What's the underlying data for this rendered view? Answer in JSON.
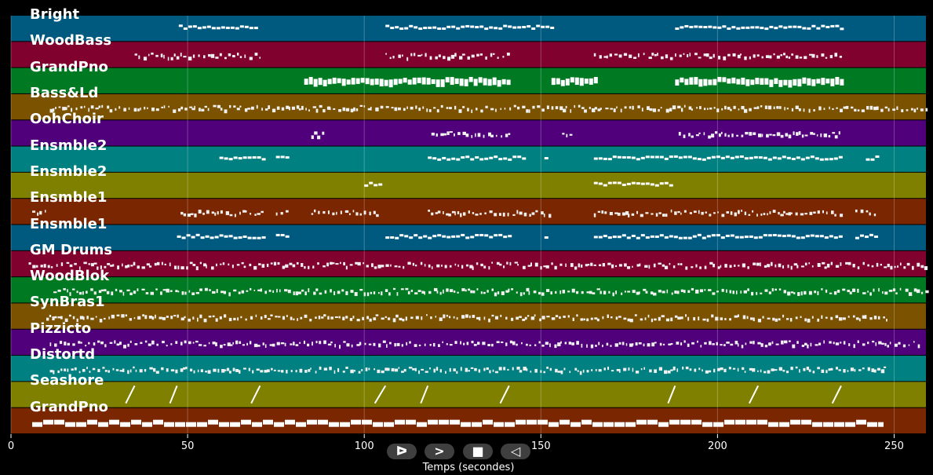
{
  "chart_data": {
    "type": "timeline",
    "xlabel": "Temps (secondes)",
    "xlim": [
      0,
      259
    ],
    "xticks": [
      0,
      50,
      100,
      150,
      200,
      250
    ],
    "grid": true,
    "tracks": [
      {
        "name": "Bright",
        "color": "#005a80",
        "style": "line",
        "segments": [
          [
            47.5,
            70
          ],
          [
            106,
            153
          ],
          [
            188,
            235
          ]
        ]
      },
      {
        "name": "WoodBass",
        "color": "#80002e",
        "style": "dots",
        "segments": [
          [
            35,
            71
          ],
          [
            106,
            141
          ],
          [
            165,
            235
          ]
        ]
      },
      {
        "name": "GrandPno",
        "color": "#007a22",
        "style": "chord",
        "segments": [
          [
            83,
            141
          ],
          [
            153,
            165
          ],
          [
            188,
            235
          ]
        ]
      },
      {
        "name": "Bass&Ld",
        "color": "#7a5200",
        "style": "dots",
        "segments": [
          [
            11,
            259
          ]
        ]
      },
      {
        "name": "OohChoir",
        "color": "#50007a",
        "style": "dots",
        "segments": [
          [
            85,
            89
          ],
          [
            119,
            142
          ],
          [
            156,
            159
          ],
          [
            189,
            235
          ]
        ]
      },
      {
        "name": "Ensmble2",
        "color": "#008080",
        "style": "line",
        "segments": [
          [
            59,
            71
          ],
          [
            118,
            141
          ],
          [
            165,
            235
          ],
          [
            75,
            78
          ],
          [
            142,
            145
          ],
          [
            151,
            152
          ],
          [
            242,
            245
          ]
        ]
      },
      {
        "name": "Ensmble2",
        "color": "#808000",
        "style": "line",
        "segments": [
          [
            100,
            104
          ],
          [
            165,
            187
          ]
        ]
      },
      {
        "name": "Ensmble1",
        "color": "#7a2600",
        "style": "dots",
        "segments": [
          [
            6,
            10
          ],
          [
            48,
            71
          ],
          [
            75,
            78
          ],
          [
            85,
            104
          ],
          [
            118,
            153
          ],
          [
            165,
            235
          ],
          [
            239,
            245
          ]
        ]
      },
      {
        "name": "Ensmble1",
        "color": "#005a80",
        "style": "line",
        "segments": [
          [
            47,
            71
          ],
          [
            75,
            78
          ],
          [
            106,
            141
          ],
          [
            151,
            152
          ],
          [
            165,
            235
          ],
          [
            239,
            245
          ]
        ]
      },
      {
        "name": "GM Drums",
        "color": "#80002e",
        "style": "dots",
        "segments": [
          [
            5,
            259
          ]
        ]
      },
      {
        "name": "WoodBlok",
        "color": "#007a22",
        "style": "dots",
        "segments": [
          [
            12,
            259
          ]
        ]
      },
      {
        "name": "SynBras1",
        "color": "#7a5200",
        "style": "dots",
        "segments": [
          [
            10,
            249
          ]
        ]
      },
      {
        "name": "Pizzicto",
        "color": "#50007a",
        "style": "dots",
        "segments": [
          [
            11,
            257
          ]
        ]
      },
      {
        "name": "Distortd",
        "color": "#008080",
        "style": "dots",
        "segments": [
          [
            11,
            247
          ]
        ]
      },
      {
        "name": "Seashore",
        "color": "#808000",
        "style": "slash",
        "segments": [
          [
            32.5,
            35
          ],
          [
            45,
            47
          ],
          [
            68,
            70.5
          ],
          [
            103,
            106
          ],
          [
            116,
            118
          ],
          [
            138.5,
            141
          ],
          [
            186,
            188
          ],
          [
            209,
            211.5
          ],
          [
            232.5,
            235
          ]
        ]
      },
      {
        "name": "GrandPno",
        "color": "#7a2600",
        "style": "block",
        "segments": [
          [
            6,
            247
          ]
        ]
      }
    ]
  },
  "controls": [
    {
      "name": "play",
      "glyph": "ᐅ"
    },
    {
      "name": "forward",
      "glyph": ">"
    },
    {
      "name": "stop",
      "glyph": "■"
    },
    {
      "name": "back",
      "glyph": "◁"
    }
  ]
}
